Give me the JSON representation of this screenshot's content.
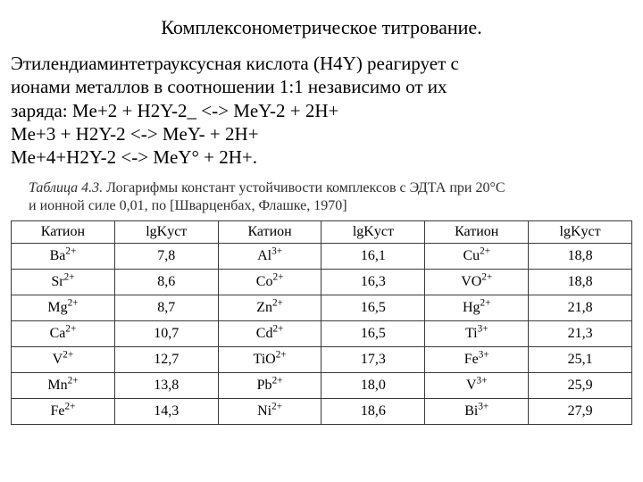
{
  "title": "Комплексонометрическое титрование.",
  "paragraph": {
    "line1": "Этилендиаминтетрауксусная кислота (H4Y) реагирует с",
    "line2": "ионами металлов в соотношении 1:1 независимо от их",
    "line3": "заряда: Me+2 + H2Y-2_ <-> MeY-2 + 2H+",
    "line4": "Me+3 + H2Y-2 <-> MeY- + 2H+",
    "line5": " Me+4+H2Y-2 <-> MeY° + 2H+."
  },
  "table_caption": {
    "lead": "Таблица 4.3.",
    "rest1": " Логарифмы констант устойчивости комплексов с ЭДТА при 20°C",
    "rest2": "и ионной силе 0,01, по [Шварценбах, Флашке, 1970]"
  },
  "table": {
    "type": "table",
    "columns": [
      "Катион",
      "lgKуст",
      "Катион",
      "lgKуст",
      "Катион",
      "lgKуст"
    ],
    "col_widths_pct": [
      16.7,
      16.7,
      16.7,
      16.7,
      16.7,
      16.7
    ],
    "header_fontsize": 16,
    "cell_fontsize": 16,
    "border_color": "#3a3a3a",
    "background_color": "#ffffff",
    "text_color": "#000000",
    "rows_html": [
      [
        "Ba<sup>2+</sup>",
        "7,8",
        "Al<sup>3+</sup>",
        "16,1",
        "Cu<sup>2+</sup>",
        "18,8"
      ],
      [
        "Sr<sup>2+</sup>",
        "8,6",
        "Co<sup>2+</sup>",
        "16,3",
        "VO<sup>2+</sup>",
        "18,8"
      ],
      [
        "Mg<sup>2+</sup>",
        "8,7",
        "Zn<sup>2+</sup>",
        "16,5",
        "Hg<sup>2+</sup>",
        "21,8"
      ],
      [
        "Ca<sup>2+</sup>",
        "10,7",
        "Cd<sup>2+</sup>",
        "16,5",
        "Ti<sup>3+</sup>",
        "21,3"
      ],
      [
        "V<sup>2+</sup>",
        "12,7",
        "TiO<sup>2+</sup>",
        "17,3",
        "Fe<sup>3+</sup>",
        "25,1"
      ],
      [
        "Mn<sup>2+</sup>",
        "13,8",
        "Pb<sup>2+</sup>",
        "18,0",
        "V<sup>3+</sup>",
        "25,9"
      ],
      [
        "Fe<sup>2+</sup>",
        "14,3",
        "Ni<sup>2+</sup>",
        "18,6",
        "Bi<sup>3+</sup>",
        "27,9"
      ]
    ]
  }
}
